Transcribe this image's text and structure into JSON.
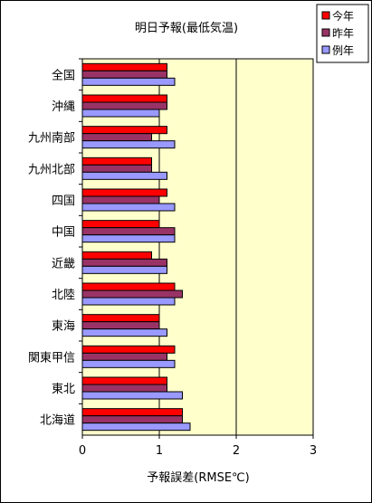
{
  "chart_data": {
    "type": "bar",
    "orientation": "horizontal",
    "title": "明日予報(最低気温)",
    "xlabel": "予報誤差(RMSE℃)",
    "ylabel": "",
    "xlim": [
      0,
      3
    ],
    "xticks": [
      0,
      1,
      2,
      3
    ],
    "grid": "vertical major gridlines",
    "plot_background": "#FFFFCC",
    "legend_position": "top-right",
    "categories": [
      "全国",
      "沖縄",
      "九州南部",
      "九州北部",
      "四国",
      "中国",
      "近畿",
      "北陸",
      "東海",
      "関東甲信",
      "東北",
      "北海道"
    ],
    "series": [
      {
        "name": "今年",
        "color": "#FF0000",
        "values": [
          1.1,
          1.1,
          1.1,
          0.9,
          1.1,
          1.0,
          0.9,
          1.2,
          1.0,
          1.2,
          1.1,
          1.3
        ]
      },
      {
        "name": "昨年",
        "color": "#993366",
        "values": [
          1.1,
          1.1,
          0.9,
          0.9,
          1.0,
          1.2,
          1.1,
          1.3,
          1.0,
          1.1,
          1.1,
          1.3
        ]
      },
      {
        "name": "例年",
        "color": "#9999FF",
        "values": [
          1.2,
          1.0,
          1.2,
          1.1,
          1.2,
          1.2,
          1.1,
          1.2,
          1.1,
          1.2,
          1.3,
          1.4
        ]
      }
    ]
  }
}
